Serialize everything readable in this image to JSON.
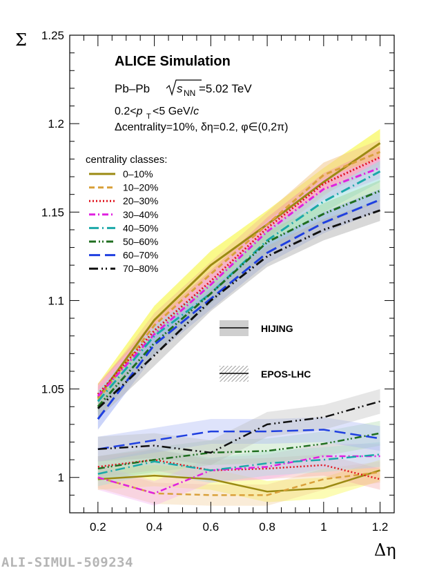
{
  "chart_data": {
    "type": "line",
    "xlabel": "Δη",
    "ylabel": "Σ",
    "xlim": [
      0.1,
      1.25
    ],
    "ylim": [
      0.98,
      1.25
    ],
    "xticks": [
      0.2,
      0.4,
      0.6,
      0.8,
      1,
      1.2
    ],
    "xtick_labels": [
      "0.2",
      "0.4",
      "0.6",
      "0.8",
      "1",
      "1.2"
    ],
    "yticks": [
      1.0,
      1.05,
      1.1,
      1.15,
      1.2,
      1.25
    ],
    "ytick_labels": [
      "1",
      "1.05",
      "1.1",
      "1.15",
      "1.2",
      "1.25"
    ],
    "grid": false,
    "legend_title": "centrality classes:",
    "x": [
      0.2,
      0.4,
      0.6,
      0.8,
      1.0,
      1.2
    ],
    "series": [
      {
        "name": "0–10%",
        "color": "#9b8a12",
        "dash": "solid",
        "band": "#f5f52a",
        "hijing": [
          1.045,
          1.089,
          1.12,
          1.143,
          1.167,
          1.189
        ],
        "hijing_err": 0.008,
        "epos": [
          0.999,
          1.001,
          0.999,
          0.992,
          0.994,
          1.004
        ],
        "epos_err": 0.006
      },
      {
        "name": "10–20%",
        "color": "#d9a03a",
        "dash": "dash",
        "band": "#f2c890",
        "hijing": [
          1.044,
          1.086,
          1.115,
          1.143,
          1.171,
          1.184
        ],
        "hijing_err": 0.007,
        "epos": [
          1.0,
          0.991,
          0.99,
          0.99,
          0.999,
          1.003
        ],
        "epos_err": 0.006
      },
      {
        "name": "20–30%",
        "color": "#e0141e",
        "dash": "dot",
        "band": "#f4a0a0",
        "hijing": [
          1.047,
          1.083,
          1.111,
          1.141,
          1.166,
          1.181
        ],
        "hijing_err": 0.006,
        "epos": [
          1.006,
          1.01,
          1.004,
          1.005,
          1.007,
          0.999
        ],
        "epos_err": 0.006
      },
      {
        "name": "30–40%",
        "color": "#e020e0",
        "dash": "dashdot",
        "band": "#f4a8f0",
        "hijing": [
          1.046,
          1.081,
          1.109,
          1.139,
          1.163,
          1.175
        ],
        "hijing_err": 0.006,
        "epos": [
          1.0,
          0.991,
          1.004,
          1.006,
          1.012,
          1.012
        ],
        "epos_err": 0.007
      },
      {
        "name": "40–50%",
        "color": "#1aa8a8",
        "dash": "longdashdot",
        "band": "#9fe0e0",
        "hijing": [
          1.043,
          1.08,
          1.104,
          1.134,
          1.156,
          1.173
        ],
        "hijing_err": 0.006,
        "epos": [
          1.002,
          1.009,
          1.004,
          1.008,
          1.01,
          1.013
        ],
        "epos_err": 0.007
      },
      {
        "name": "50–60%",
        "color": "#1f6e1f",
        "dash": "dashdotdot",
        "band": "#a6d8a6",
        "hijing": [
          1.04,
          1.076,
          1.104,
          1.133,
          1.149,
          1.162
        ],
        "hijing_err": 0.006,
        "epos": [
          1.005,
          1.01,
          1.014,
          1.015,
          1.019,
          1.025
        ],
        "epos_err": 0.007
      },
      {
        "name": "60–70%",
        "color": "#1f3fe0",
        "dash": "longdash",
        "band": "#a0b0f4",
        "hijing": [
          1.033,
          1.075,
          1.101,
          1.127,
          1.144,
          1.157
        ],
        "hijing_err": 0.006,
        "epos": [
          1.016,
          1.021,
          1.026,
          1.026,
          1.027,
          1.022
        ],
        "epos_err": 0.007
      },
      {
        "name": "70–80%",
        "color": "#101010",
        "dash": "longdashdotdot",
        "band": "#b8b8b8",
        "hijing": [
          1.039,
          1.069,
          1.1,
          1.125,
          1.14,
          1.151
        ],
        "hijing_err": 0.006,
        "epos": [
          1.016,
          1.018,
          1.014,
          1.03,
          1.034,
          1.043
        ],
        "epos_err": 0.007
      }
    ],
    "model_legend": [
      "HIJING",
      "EPOS-LHC"
    ]
  },
  "annotations": {
    "title": "ALICE Simulation",
    "system_prefix": "Pb–Pb",
    "energy_sub": "NN",
    "energy_value": "=5.02 TeV",
    "pt_range_pre": "0.2<",
    "pt_range_sub": "T",
    "pt_range_post": "<5 GeV/",
    "pt_c": "c",
    "params": "Δcentrality=10%, δη=0.2, φ∈(0,2π)"
  },
  "footer": "ALI-SIMUL-509234"
}
